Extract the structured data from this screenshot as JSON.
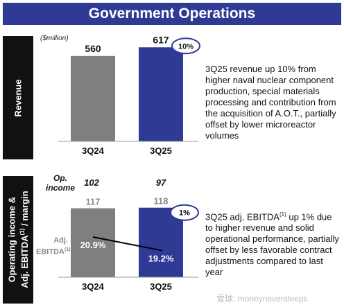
{
  "title": "Government Operations",
  "watermark": "雪球: moneyneversleeps",
  "colors": {
    "title_bg": "#2e3a94",
    "bar_prior": "#7f7f7f",
    "bar_current": "#2e3a94"
  },
  "revenue_section": {
    "side_label": "Revenue",
    "unit": "($million)",
    "growth_badge": "10%",
    "description": "3Q25 revenue up 10% from higher naval nuclear component production, special materials processing and contribution from the acquisition of A.O.T., partially offset by lower microreactor volumes"
  },
  "ebitda_section": {
    "side_label_line1": "Operating income &",
    "side_label_line2a": "Adj. EBITDA",
    "side_label_sup": "(1)",
    "side_label_line2b": " / margin",
    "op_income_label": "Op. income",
    "op_income_values": [
      "102",
      "97"
    ],
    "ebitda_row_label": "Adj. EBITDA",
    "ebitda_row_sup": "(1)",
    "growth_badge": "1%",
    "description_a": "3Q25 adj. EBITDA",
    "description_sup": "(1)",
    "description_b": " up 1% due to higher revenue and solid operational performance, partially offset by less favorable contract adjustments compared to last year"
  },
  "chart_data": [
    {
      "type": "bar",
      "categories": [
        "3Q24",
        "3Q25"
      ],
      "values": [
        560,
        617
      ],
      "value_labels": [
        "560",
        "617"
      ],
      "ylabel": "($million)"
    },
    {
      "type": "bar",
      "categories": [
        "3Q24",
        "3Q25"
      ],
      "values": [
        117,
        118
      ],
      "value_labels": [
        "117",
        "118"
      ],
      "margin_line": {
        "values": [
          20.9,
          19.2
        ],
        "labels": [
          "20.9%",
          "19.2%"
        ]
      }
    }
  ]
}
